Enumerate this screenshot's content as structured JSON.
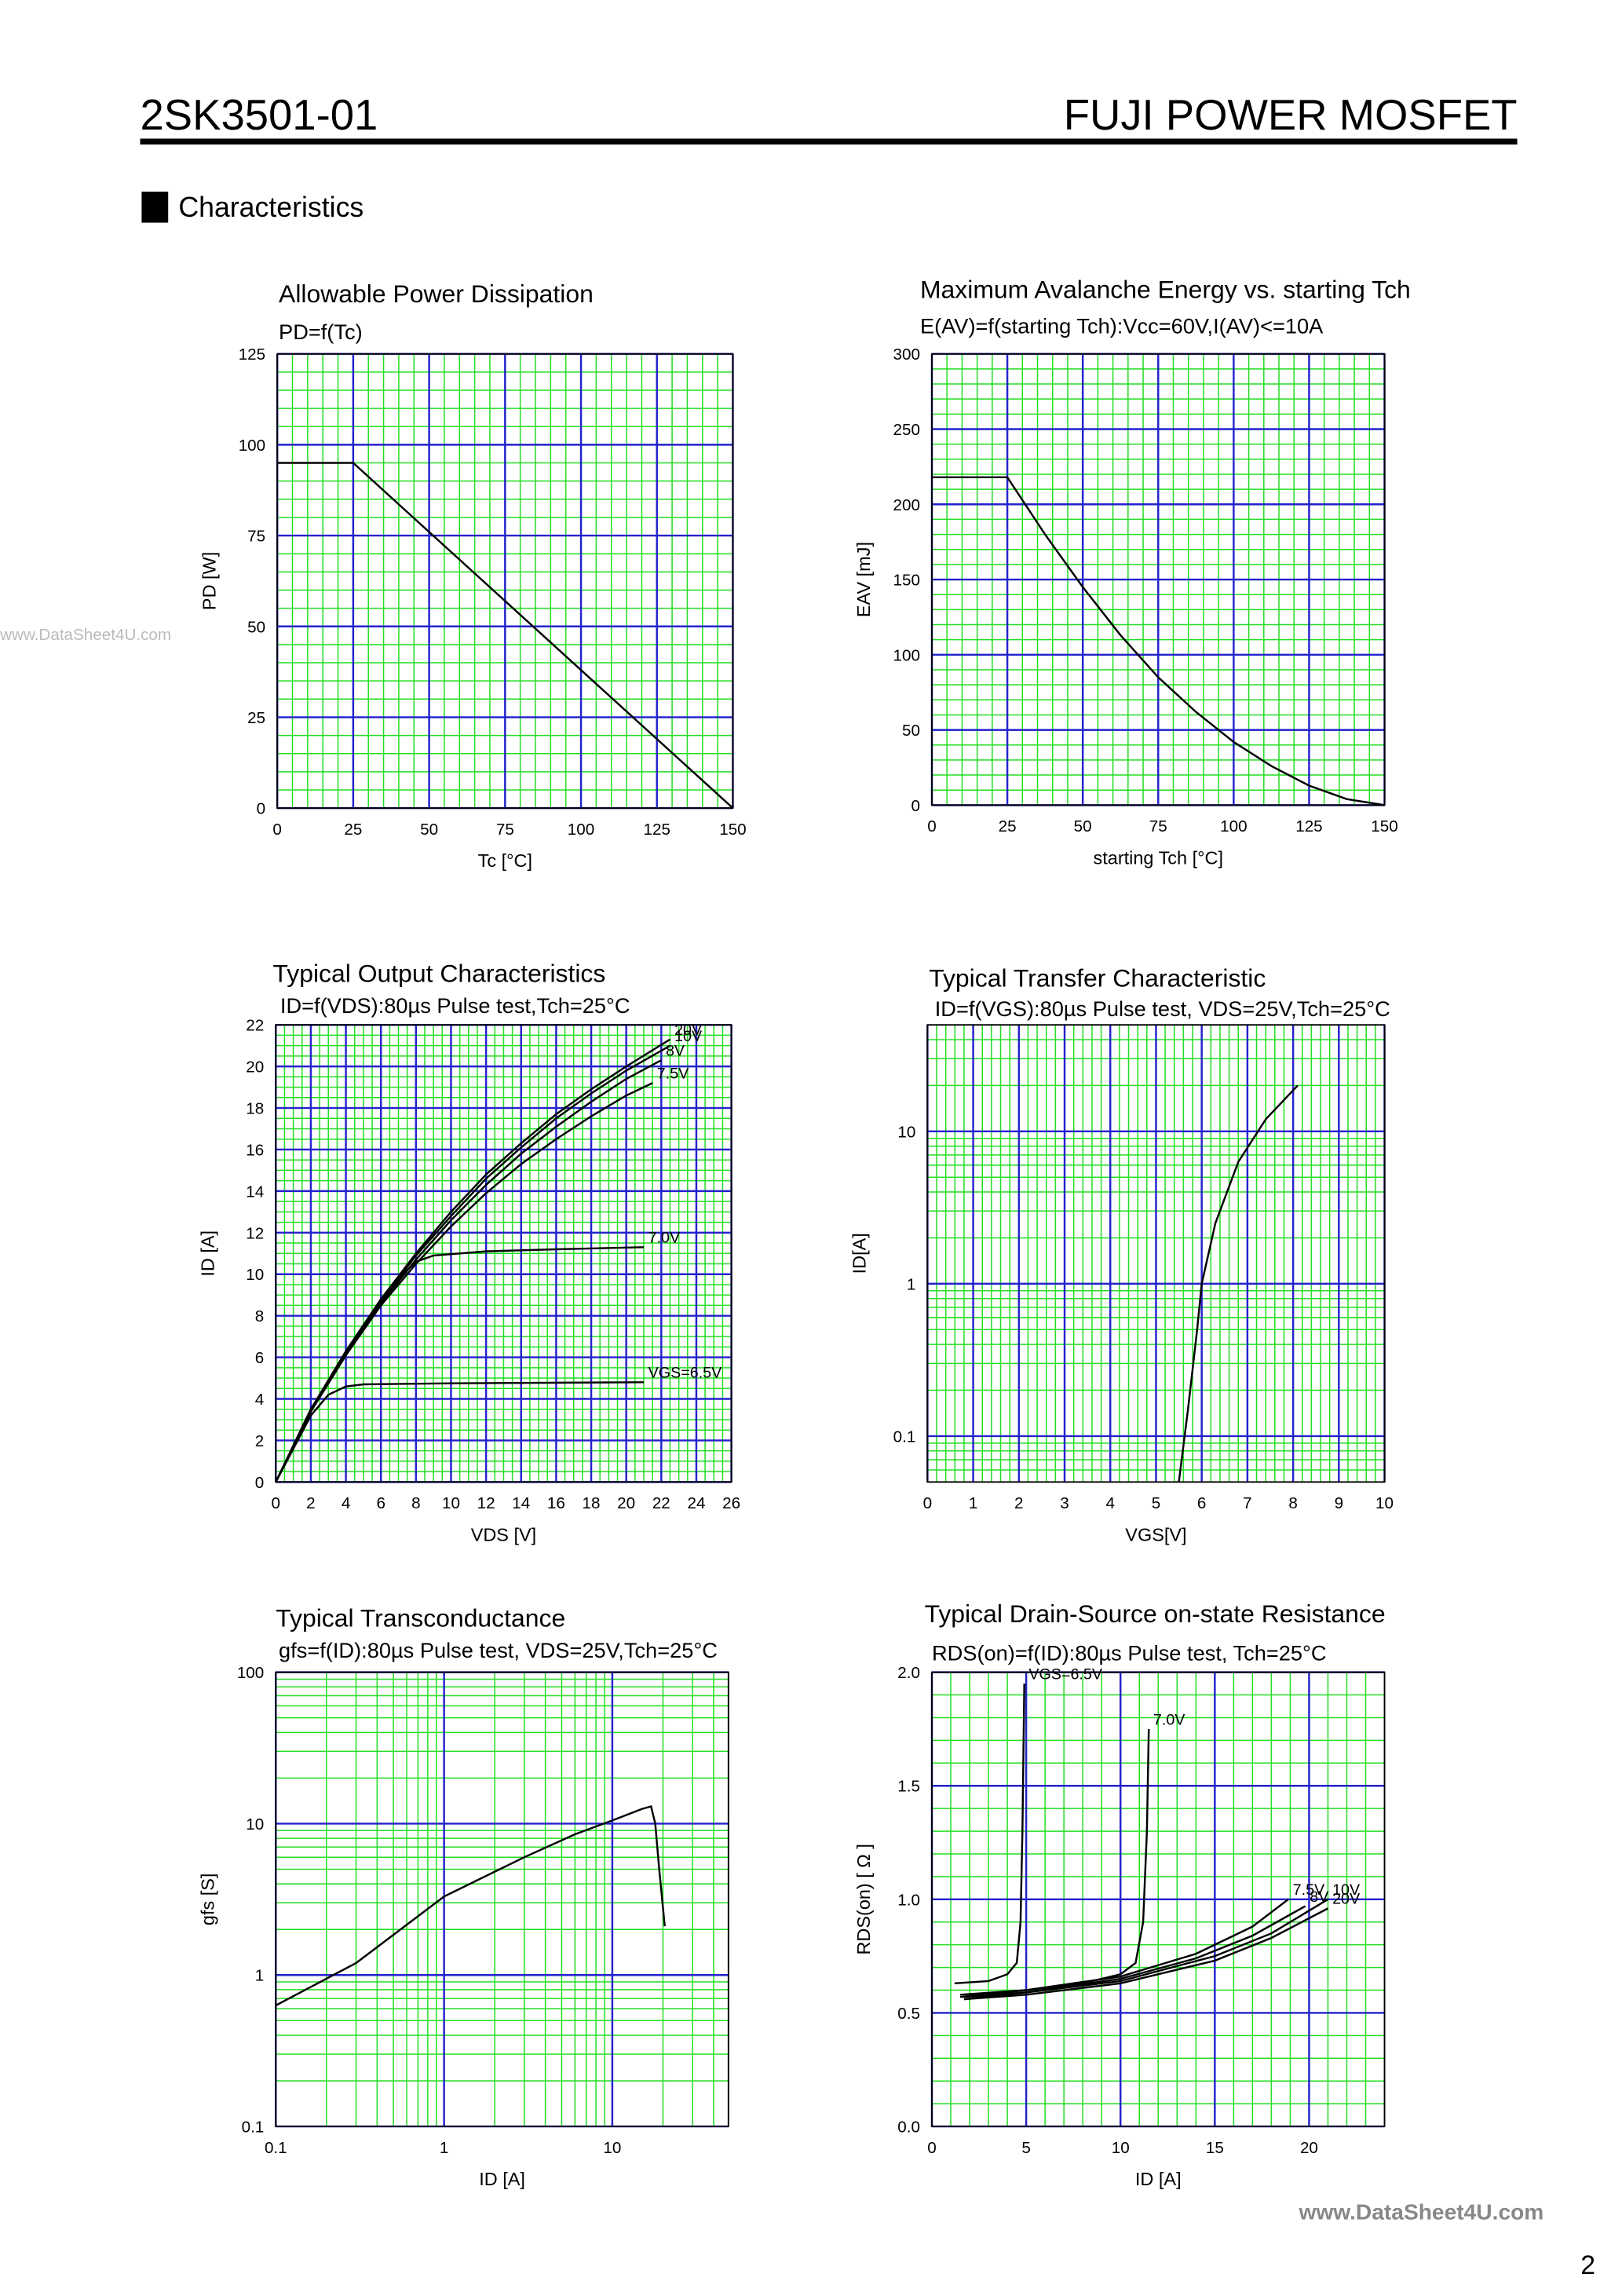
{
  "header": {
    "part_number": "2SK3501-01",
    "brand": "FUJI POWER MOSFET",
    "section": "Characteristics",
    "page_number": "2",
    "watermark_left": "www.DataSheet4U.com",
    "watermark_bottom": "www.DataSheet4U.com"
  },
  "chart_data": [
    {
      "type": "line",
      "title": "Allowable Power Dissipation",
      "subtitle": "PD=f(Tc)",
      "x_label": "Tc [°C]",
      "y_label": "PD [W]",
      "xlim": [
        0,
        150
      ],
      "xticks": [
        0,
        25,
        50,
        75,
        100,
        125,
        150
      ],
      "ylim": [
        0,
        125
      ],
      "yticks": [
        0,
        25,
        50,
        75,
        100,
        125
      ],
      "grid": true,
      "minor_grid": 5,
      "grid_color": "#2222cc",
      "minor_grid_color": "#22dd22",
      "color": "#000000",
      "series": [
        {
          "x": [
            0,
            25,
            150
          ],
          "values": [
            95,
            95,
            0
          ]
        }
      ]
    },
    {
      "type": "line",
      "title": "Maximum Avalanche Energy vs. starting Tch",
      "subtitle": "E(AV)=f(starting Tch):Vcc=60V,I(AV)<=10A",
      "x_label": "starting Tch [°C]",
      "y_label": "EAV [mJ]",
      "xlim": [
        0,
        150
      ],
      "xticks": [
        0,
        25,
        50,
        75,
        100,
        125,
        150
      ],
      "ylim": [
        0,
        300
      ],
      "yticks": [
        0,
        50,
        100,
        150,
        200,
        250,
        300
      ],
      "grid": true,
      "minor_grid": 5,
      "grid_color": "#2222cc",
      "minor_grid_color": "#22dd22",
      "color": "#000000",
      "series": [
        {
          "x": [
            0,
            25,
            37.5,
            50,
            62.5,
            75,
            87.5,
            100,
            112.5,
            125,
            137.5,
            150
          ],
          "values": [
            218,
            218,
            180,
            145,
            113,
            85,
            62,
            42,
            26,
            13,
            4,
            0
          ]
        }
      ]
    },
    {
      "type": "line",
      "title": "Typical Output Characteristics",
      "subtitle": "ID=f(VDS):80µs Pulse test,Tch=25°C",
      "x_label": "VDS [V]",
      "y_label": "ID [A]",
      "xlim": [
        0,
        26
      ],
      "xticks": [
        0,
        2,
        4,
        6,
        8,
        10,
        12,
        14,
        16,
        18,
        20,
        22,
        24,
        26
      ],
      "ylim": [
        0,
        22
      ],
      "yticks": [
        0,
        2,
        4,
        6,
        8,
        10,
        12,
        14,
        16,
        18,
        20,
        22
      ],
      "grid": true,
      "minor_grid": 4,
      "grid_color": "#2222cc",
      "minor_grid_color": "#22dd22",
      "color": "#000000",
      "series": [
        {
          "name": "20V",
          "x": [
            0,
            2,
            4,
            6,
            8,
            10,
            12,
            14,
            16,
            18,
            20,
            22.5
          ],
          "values": [
            0,
            3.5,
            6.3,
            8.8,
            11,
            13,
            14.8,
            16.3,
            17.7,
            18.9,
            20,
            21.3
          ]
        },
        {
          "name": "10V",
          "x": [
            0,
            2,
            4,
            6,
            8,
            10,
            12,
            14,
            16,
            18,
            20,
            22.5
          ],
          "values": [
            0,
            3.5,
            6.2,
            8.7,
            10.9,
            12.8,
            14.6,
            16.1,
            17.5,
            18.7,
            19.8,
            21.0
          ]
        },
        {
          "name": "8V",
          "x": [
            0,
            2,
            4,
            6,
            8,
            10,
            12,
            14,
            16,
            18,
            20,
            22
          ],
          "values": [
            0,
            3.4,
            6.1,
            8.6,
            10.7,
            12.6,
            14.3,
            15.8,
            17.1,
            18.3,
            19.4,
            20.3
          ]
        },
        {
          "name": "7.5V",
          "x": [
            0,
            2,
            4,
            6,
            8,
            10,
            12,
            14,
            16,
            18,
            20,
            21.5
          ],
          "values": [
            0,
            3.4,
            6.1,
            8.5,
            10.5,
            12.3,
            13.9,
            15.3,
            16.5,
            17.6,
            18.6,
            19.2
          ]
        },
        {
          "name": "7.0V",
          "x": [
            0,
            2,
            4,
            6,
            7,
            8,
            9,
            12,
            16,
            21
          ],
          "values": [
            0,
            3.4,
            6.2,
            8.6,
            9.8,
            10.6,
            10.9,
            11.1,
            11.2,
            11.3
          ]
        },
        {
          "name": "VGS=6.5V",
          "x": [
            0,
            2,
            3,
            4,
            5,
            10,
            21
          ],
          "values": [
            0,
            3.2,
            4.2,
            4.6,
            4.7,
            4.75,
            4.8
          ]
        }
      ]
    },
    {
      "type": "line",
      "title": "Typical Transfer Characteristic",
      "subtitle": "ID=f(VGS):80µs Pulse test, VDS=25V,Tch=25°C",
      "x_label": "VGS[V]",
      "y_label": "ID[A]",
      "xlim": [
        0,
        10
      ],
      "xticks": [
        0,
        1,
        2,
        3,
        4,
        5,
        6,
        7,
        8,
        9,
        10
      ],
      "ylim": [
        0.05,
        50
      ],
      "yticks": [
        0.1,
        1,
        10
      ],
      "y_log": true,
      "grid": true,
      "minor_grid": 5,
      "grid_color": "#2222cc",
      "minor_grid_color": "#22dd22",
      "color": "#000000",
      "series": [
        {
          "x": [
            5.5,
            5.7,
            5.9,
            6.0,
            6.3,
            6.8,
            7.4,
            8.1
          ],
          "values": [
            0.05,
            0.15,
            0.5,
            1,
            2.5,
            6.3,
            12,
            20
          ]
        }
      ]
    },
    {
      "type": "line",
      "title": "Typical Transconductance",
      "subtitle": "gfs=f(ID):80µs Pulse test, VDS=25V,Tch=25°C",
      "x_label": "ID [A]",
      "y_label": "gfs [S]",
      "xlim": [
        0.1,
        49
      ],
      "xticks": [
        0.1,
        1,
        10
      ],
      "x_log": true,
      "ylim": [
        0.1,
        100
      ],
      "yticks": [
        0.1,
        1,
        10,
        100
      ],
      "y_log": true,
      "grid": true,
      "minor_grid": 5,
      "grid_color": "#2222cc",
      "minor_grid_color": "#22dd22",
      "color": "#000000",
      "series": [
        {
          "x": [
            0.1,
            0.3,
            1,
            3,
            6,
            10,
            15,
            17,
            18,
            19,
            20.5
          ],
          "values": [
            0.63,
            1.2,
            3.3,
            6,
            8.5,
            10.5,
            12.5,
            13,
            10,
            5,
            2.1
          ]
        }
      ]
    },
    {
      "type": "line",
      "title": "Typical Drain-Source on-state Resistance",
      "subtitle": "RDS(on)=f(ID):80µs Pulse test, Tch=25°C",
      "x_label": "ID [A]",
      "y_label": "RDS(on) [ Ω ]",
      "xlim": [
        0,
        24
      ],
      "xticks": [
        0,
        5,
        10,
        15,
        20
      ],
      "ylim": [
        0,
        2
      ],
      "yticks": [
        {
          "value": 0,
          "label": "0.0"
        },
        0.5,
        {
          "value": 1,
          "label": "1.0"
        },
        1.5,
        {
          "value": 2,
          "label": "2.0"
        }
      ],
      "grid": true,
      "minor_grid": 5,
      "grid_color": "#2222cc",
      "minor_grid_color": "#22dd22",
      "color": "#000000",
      "series": [
        {
          "name": "VGS=6.5V",
          "x": [
            1.2,
            3,
            4,
            4.5,
            4.7,
            4.8,
            4.9
          ],
          "values": [
            0.63,
            0.64,
            0.67,
            0.72,
            0.9,
            1.3,
            1.95
          ]
        },
        {
          "name": "7.0V",
          "x": [
            1.5,
            5,
            8,
            10,
            10.8,
            11.2,
            11.4,
            11.5
          ],
          "values": [
            0.58,
            0.6,
            0.63,
            0.67,
            0.72,
            0.9,
            1.3,
            1.75
          ]
        },
        {
          "name": "7.5V",
          "x": [
            1.5,
            5,
            10,
            14,
            17,
            18.9
          ],
          "values": [
            0.57,
            0.6,
            0.66,
            0.76,
            0.88,
            1.0
          ]
        },
        {
          "name": "8V",
          "x": [
            1.7,
            5,
            10,
            14,
            17,
            19.8
          ],
          "values": [
            0.56,
            0.59,
            0.65,
            0.74,
            0.84,
            0.97
          ]
        },
        {
          "name": "10V",
          "x": [
            1.7,
            5,
            10,
            15,
            18,
            21
          ],
          "values": [
            0.57,
            0.59,
            0.64,
            0.75,
            0.85,
            1.0
          ]
        },
        {
          "name": "20V",
          "x": [
            1.7,
            5,
            10,
            15,
            18,
            21
          ],
          "values": [
            0.56,
            0.58,
            0.63,
            0.73,
            0.83,
            0.96
          ]
        }
      ]
    }
  ]
}
